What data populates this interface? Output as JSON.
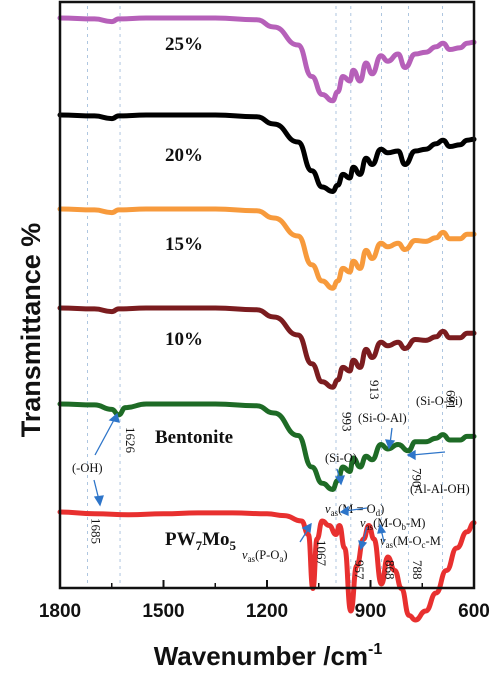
{
  "chart_data": {
    "type": "line",
    "xlabel": "Wavenumber /cm",
    "xlabel_sup": "-1",
    "ylabel": "Transmittance %",
    "xlim": [
      1800,
      600
    ],
    "xticks": [
      "1800",
      "1500",
      "1200",
      "900",
      "600"
    ],
    "xtick_values": [
      1800,
      1500,
      1200,
      900,
      600
    ],
    "grid": false,
    "series": [
      {
        "name": "25%",
        "color": "#b660b9",
        "offset": 6,
        "points": [
          [
            1800,
            0
          ],
          [
            1700,
            -1
          ],
          [
            1650,
            -4
          ],
          [
            1630,
            -1
          ],
          [
            1550,
            0
          ],
          [
            1350,
            0
          ],
          [
            1230,
            -2
          ],
          [
            1180,
            -10
          ],
          [
            1110,
            -30
          ],
          [
            1070,
            -65
          ],
          [
            1040,
            -85
          ],
          [
            1010,
            -92
          ],
          [
            995,
            -82
          ],
          [
            980,
            -65
          ],
          [
            960,
            -70
          ],
          [
            950,
            -58
          ],
          [
            930,
            -70
          ],
          [
            913,
            -50
          ],
          [
            895,
            -62
          ],
          [
            870,
            -42
          ],
          [
            850,
            -48
          ],
          [
            820,
            -40
          ],
          [
            800,
            -55
          ],
          [
            770,
            -40
          ],
          [
            740,
            -38
          ],
          [
            710,
            -32
          ],
          [
            690,
            -28
          ],
          [
            670,
            -35
          ],
          [
            640,
            -33
          ],
          [
            620,
            -28
          ],
          [
            600,
            -27
          ]
        ]
      },
      {
        "name": "20%",
        "color": "#000000",
        "offset": 5,
        "points": [
          [
            1800,
            0
          ],
          [
            1700,
            -1
          ],
          [
            1650,
            -4
          ],
          [
            1630,
            -1
          ],
          [
            1550,
            0
          ],
          [
            1350,
            0
          ],
          [
            1230,
            -2
          ],
          [
            1180,
            -10
          ],
          [
            1110,
            -30
          ],
          [
            1070,
            -62
          ],
          [
            1040,
            -80
          ],
          [
            1010,
            -85
          ],
          [
            995,
            -78
          ],
          [
            980,
            -66
          ],
          [
            960,
            -70
          ],
          [
            950,
            -58
          ],
          [
            930,
            -66
          ],
          [
            913,
            -48
          ],
          [
            895,
            -55
          ],
          [
            870,
            -38
          ],
          [
            850,
            -42
          ],
          [
            820,
            -40
          ],
          [
            800,
            -55
          ],
          [
            770,
            -40
          ],
          [
            740,
            -38
          ],
          [
            710,
            -32
          ],
          [
            690,
            -28
          ],
          [
            670,
            -35
          ],
          [
            640,
            -33
          ],
          [
            620,
            -28
          ],
          [
            600,
            -27
          ]
        ]
      },
      {
        "name": "15%",
        "color": "#f79a3c",
        "offset": 4,
        "points": [
          [
            1800,
            0
          ],
          [
            1700,
            -1
          ],
          [
            1650,
            -4
          ],
          [
            1630,
            -1
          ],
          [
            1550,
            0
          ],
          [
            1350,
            0
          ],
          [
            1230,
            -2
          ],
          [
            1180,
            -10
          ],
          [
            1110,
            -30
          ],
          [
            1070,
            -62
          ],
          [
            1040,
            -80
          ],
          [
            1010,
            -88
          ],
          [
            995,
            -80
          ],
          [
            980,
            -66
          ],
          [
            960,
            -70
          ],
          [
            950,
            -58
          ],
          [
            930,
            -66
          ],
          [
            913,
            -46
          ],
          [
            895,
            -55
          ],
          [
            870,
            -38
          ],
          [
            850,
            -42
          ],
          [
            820,
            -38
          ],
          [
            800,
            -45
          ],
          [
            770,
            -35
          ],
          [
            740,
            -36
          ],
          [
            710,
            -32
          ],
          [
            690,
            -26
          ],
          [
            670,
            -33
          ],
          [
            640,
            -33
          ],
          [
            620,
            -28
          ],
          [
            600,
            -28
          ]
        ]
      },
      {
        "name": "10%",
        "color": "#7b1c1f",
        "offset": 3,
        "points": [
          [
            1800,
            0
          ],
          [
            1700,
            -1
          ],
          [
            1650,
            -4
          ],
          [
            1630,
            -1
          ],
          [
            1550,
            0
          ],
          [
            1350,
            0
          ],
          [
            1230,
            -2
          ],
          [
            1180,
            -10
          ],
          [
            1110,
            -30
          ],
          [
            1070,
            -62
          ],
          [
            1040,
            -82
          ],
          [
            1010,
            -88
          ],
          [
            995,
            -80
          ],
          [
            980,
            -66
          ],
          [
            960,
            -70
          ],
          [
            950,
            -58
          ],
          [
            930,
            -66
          ],
          [
            913,
            -46
          ],
          [
            895,
            -55
          ],
          [
            870,
            -38
          ],
          [
            850,
            -42
          ],
          [
            820,
            -38
          ],
          [
            800,
            -45
          ],
          [
            770,
            -35
          ],
          [
            740,
            -36
          ],
          [
            710,
            -32
          ],
          [
            690,
            -26
          ],
          [
            670,
            -33
          ],
          [
            640,
            -33
          ],
          [
            620,
            -28
          ],
          [
            600,
            -28
          ]
        ]
      },
      {
        "name": "Bentonite",
        "color": "#1e6b26",
        "offset": 2,
        "points": [
          [
            1800,
            0
          ],
          [
            1700,
            -1
          ],
          [
            1650,
            -6
          ],
          [
            1630,
            -12
          ],
          [
            1610,
            -4
          ],
          [
            1550,
            0
          ],
          [
            1350,
            0
          ],
          [
            1230,
            -2
          ],
          [
            1180,
            -10
          ],
          [
            1110,
            -35
          ],
          [
            1070,
            -70
          ],
          [
            1040,
            -88
          ],
          [
            1010,
            -95
          ],
          [
            995,
            -85
          ],
          [
            980,
            -70
          ],
          [
            960,
            -75
          ],
          [
            950,
            -60
          ],
          [
            930,
            -70
          ],
          [
            913,
            -58
          ],
          [
            895,
            -62
          ],
          [
            870,
            -45
          ],
          [
            850,
            -50
          ],
          [
            820,
            -45
          ],
          [
            790,
            -52
          ],
          [
            770,
            -42
          ],
          [
            740,
            -42
          ],
          [
            710,
            -38
          ],
          [
            690,
            -34
          ],
          [
            670,
            -40
          ],
          [
            640,
            -40
          ],
          [
            620,
            -36
          ],
          [
            600,
            -36
          ]
        ]
      },
      {
        "name": "PW7Mo5",
        "label_main": "PW",
        "label_sub1": "7",
        "label_mid": "Mo",
        "label_sub2": "5",
        "color": "#e8302f",
        "offset": 1,
        "points": [
          [
            1800,
            0
          ],
          [
            1700,
            -2
          ],
          [
            1600,
            -3
          ],
          [
            1500,
            -2
          ],
          [
            1400,
            -1
          ],
          [
            1300,
            -1
          ],
          [
            1200,
            -2
          ],
          [
            1150,
            -4
          ],
          [
            1100,
            -10
          ],
          [
            1080,
            -25
          ],
          [
            1067,
            -85
          ],
          [
            1055,
            -30
          ],
          [
            1040,
            -10
          ],
          [
            1020,
            -15
          ],
          [
            1000,
            -25
          ],
          [
            990,
            -15
          ],
          [
            975,
            -40
          ],
          [
            957,
            -110
          ],
          [
            940,
            -60
          ],
          [
            920,
            -30
          ],
          [
            905,
            -15
          ],
          [
            890,
            -30
          ],
          [
            868,
            -80
          ],
          [
            850,
            -50
          ],
          [
            830,
            -65
          ],
          [
            810,
            -85
          ],
          [
            788,
            -115
          ],
          [
            770,
            -120
          ],
          [
            740,
            -110
          ],
          [
            710,
            -90
          ],
          [
            680,
            -65
          ],
          [
            650,
            -40
          ],
          [
            620,
            -22
          ],
          [
            600,
            -12
          ]
        ]
      }
    ],
    "annotations": {
      "oh": "(-OH)",
      "si_o": "(Si-O)",
      "si_o_al": "(Si-O-Al)",
      "si_o_si": "(Si-O-Si)",
      "al_al_oh": "(Al-Al-OH)",
      "m_od_pre": "(M = O",
      "m_od_sub": "d",
      "m_od_post": ")",
      "m_ob_m_pre": "(M-O",
      "m_ob_m_sub": "b",
      "m_ob_m_post": "-M)",
      "m_oc_m_pre": "(M-O",
      "m_oc_m_sub": "c",
      "m_oc_m_post": "-M",
      "p_oa_pre": "(P-O",
      "p_oa_sub": "a",
      "p_oa_post": ")",
      "nu": "ν",
      "as": "as"
    },
    "peak_labels": [
      {
        "text": "1685",
        "x": 1720
      },
      {
        "text": "1626",
        "x": 1620
      },
      {
        "text": "993",
        "x": 993
      },
      {
        "text": "913",
        "x": 913
      },
      {
        "text": "691",
        "x": 691
      },
      {
        "text": "790",
        "x": 790
      },
      {
        "text": "1067",
        "x": 1067
      },
      {
        "text": "957",
        "x": 957
      },
      {
        "text": "868",
        "x": 868
      },
      {
        "text": "788",
        "x": 788
      }
    ],
    "guide_lines": [
      1720,
      1626,
      1000,
      957,
      868,
      790,
      691
    ]
  }
}
